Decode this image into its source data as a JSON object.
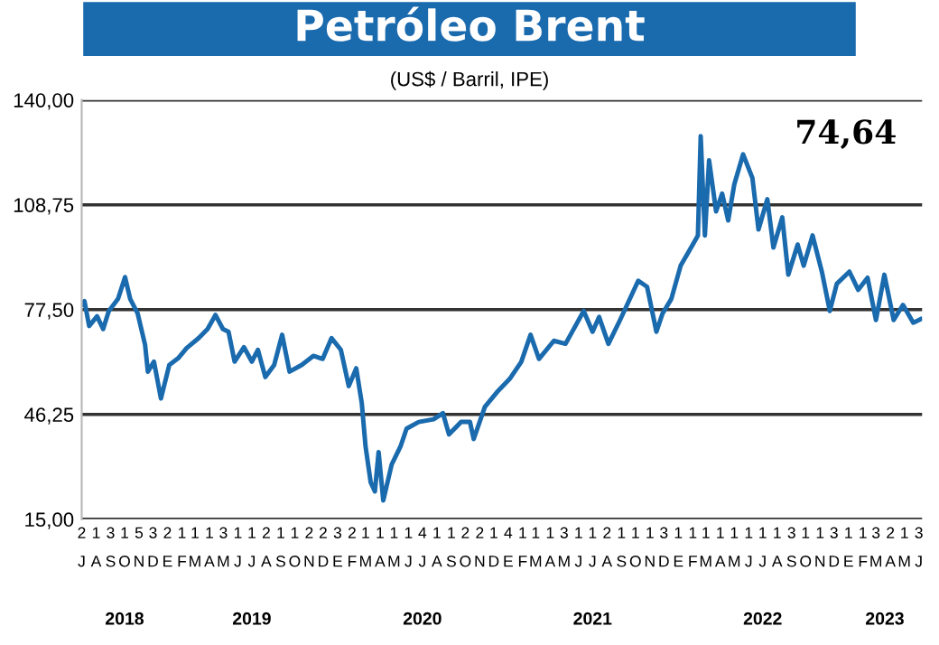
{
  "chart_data": {
    "type": "line",
    "title": "Petróleo Brent",
    "subtitle": "(US$ / Barril, IPE)",
    "annotations": [
      "74,64"
    ],
    "x": [
      "2018-07-01",
      "2018-07-07",
      "2018-07-17",
      "2018-08-03",
      "2018-08-16",
      "2018-08-28",
      "2018-09-17",
      "2018-10-02",
      "2018-10-13",
      "2018-10-29",
      "2018-11-14",
      "2018-11-20",
      "2018-12-03",
      "2018-12-18",
      "2019-01-05",
      "2019-01-24",
      "2019-02-11",
      "2019-03-09",
      "2019-03-28",
      "2019-04-14",
      "2019-04-30",
      "2019-05-12",
      "2019-05-25",
      "2019-06-14",
      "2019-07-01",
      "2019-07-14",
      "2019-07-30",
      "2019-08-18",
      "2019-09-04",
      "2019-09-20",
      "2019-10-16",
      "2019-11-10",
      "2019-11-30",
      "2019-12-19",
      "2020-01-08",
      "2020-01-25",
      "2020-02-10",
      "2020-02-22",
      "2020-03-01",
      "2020-03-12",
      "2020-03-21",
      "2020-03-29",
      "2020-04-08",
      "2020-04-26",
      "2020-05-15",
      "2020-05-28",
      "2020-06-23",
      "2020-07-25",
      "2020-08-14",
      "2020-08-27",
      "2020-09-22",
      "2020-10-11",
      "2020-10-19",
      "2020-11-12",
      "2020-12-08",
      "2021-01-04",
      "2021-01-29",
      "2021-02-18",
      "2021-03-08",
      "2021-04-09",
      "2021-05-04",
      "2021-06-12",
      "2021-07-01",
      "2021-07-15",
      "2021-08-04",
      "2021-08-29",
      "2021-10-07",
      "2021-10-26",
      "2021-11-15",
      "2021-11-28",
      "2021-12-17",
      "2022-01-06",
      "2022-02-01",
      "2022-02-12",
      "2022-02-18",
      "2022-02-27",
      "2022-03-08",
      "2022-03-23",
      "2022-04-05",
      "2022-04-18",
      "2022-05-01",
      "2022-05-20",
      "2022-06-09",
      "2022-06-22",
      "2022-07-11",
      "2022-07-24",
      "2022-08-12",
      "2022-08-25",
      "2022-09-14",
      "2022-09-27",
      "2022-10-16",
      "2022-11-05",
      "2022-11-22",
      "2022-12-07",
      "2023-01-03",
      "2023-01-22",
      "2023-02-11",
      "2023-03-01",
      "2023-03-19",
      "2023-04-08",
      "2023-04-28",
      "2023-05-20",
      "2023-06-05"
    ],
    "series": [
      {
        "color": "#1a6aae",
        "values": [
          79,
          80,
          72.6,
          75.5,
          71.7,
          77,
          80.7,
          87.2,
          80.7,
          76.4,
          67,
          59,
          62,
          51,
          61,
          63,
          66,
          69,
          71.7,
          75.9,
          71.7,
          70.9,
          62,
          66.3,
          62,
          65.5,
          57.4,
          61,
          70,
          59,
          61,
          63.7,
          62.8,
          69,
          65.5,
          54.7,
          60,
          49.5,
          36.7,
          26,
          23.3,
          35,
          20.6,
          31.3,
          36.7,
          42,
          44,
          44.8,
          46.6,
          40.3,
          44,
          44,
          38.9,
          48.5,
          52.9,
          56.8,
          61.9,
          70,
          62.8,
          68.2,
          67.3,
          77.1,
          70.9,
          75.3,
          67.3,
          74.4,
          86.1,
          84.3,
          70.9,
          76.3,
          80.7,
          90.6,
          96.9,
          99.6,
          129.2,
          99.6,
          122,
          106.8,
          112.1,
          104.1,
          114.8,
          123.8,
          116.7,
          101.4,
          110.4,
          96,
          105,
          87.9,
          96.9,
          90.6,
          99.6,
          88.8,
          77.1,
          85.2,
          88.8,
          83.4,
          87,
          74.4,
          87.9,
          74.4,
          78.9,
          73.6,
          74.64
        ]
      }
    ],
    "xlim": [
      "2018-07-01",
      "2023-06-08"
    ],
    "xticks": [
      {
        "value": "2018-07-01",
        "label": "2\nJ"
      },
      {
        "value": "2018-08-01",
        "label": "1\nA"
      },
      {
        "value": "2018-09-01",
        "label": "3\nS"
      },
      {
        "value": "2018-10-01",
        "label": "1\nO"
      },
      {
        "value": "2018-11-01",
        "label": "5\nN"
      },
      {
        "value": "2018-12-01",
        "label": "3\nD"
      },
      {
        "value": "2019-01-01",
        "label": "2\nE"
      },
      {
        "value": "2019-02-01",
        "label": "1\nF"
      },
      {
        "value": "2019-03-01",
        "label": "1\nM"
      },
      {
        "value": "2019-04-01",
        "label": "1\nA"
      },
      {
        "value": "2019-05-01",
        "label": "3\nM"
      },
      {
        "value": "2019-06-01",
        "label": "1\nJ"
      },
      {
        "value": "2019-07-01",
        "label": "1\nJ"
      },
      {
        "value": "2019-08-01",
        "label": "2\nA"
      },
      {
        "value": "2019-09-01",
        "label": "1\nS"
      },
      {
        "value": "2019-10-01",
        "label": "1\nO"
      },
      {
        "value": "2019-11-01",
        "label": "2\nN"
      },
      {
        "value": "2019-12-01",
        "label": "2\nD"
      },
      {
        "value": "2020-01-01",
        "label": "3\nE"
      },
      {
        "value": "2020-02-01",
        "label": "2\nF"
      },
      {
        "value": "2020-03-01",
        "label": "1\nM"
      },
      {
        "value": "2020-04-01",
        "label": "1\nA"
      },
      {
        "value": "2020-05-01",
        "label": "1\nM"
      },
      {
        "value": "2020-06-01",
        "label": "1\nJ"
      },
      {
        "value": "2020-07-01",
        "label": "4\nJ"
      },
      {
        "value": "2020-08-01",
        "label": "1\nA"
      },
      {
        "value": "2020-09-01",
        "label": "1\nS"
      },
      {
        "value": "2020-10-01",
        "label": "2\nO"
      },
      {
        "value": "2020-11-01",
        "label": "2\nN"
      },
      {
        "value": "2020-12-01",
        "label": "1\nD"
      },
      {
        "value": "2021-01-01",
        "label": "4\nE"
      },
      {
        "value": "2021-02-01",
        "label": "1\nF"
      },
      {
        "value": "2021-03-01",
        "label": "1\nM"
      },
      {
        "value": "2021-04-01",
        "label": "1\nA"
      },
      {
        "value": "2021-05-01",
        "label": "3\nM"
      },
      {
        "value": "2021-06-01",
        "label": "1\nJ"
      },
      {
        "value": "2021-07-01",
        "label": "1\nJ"
      },
      {
        "value": "2021-08-01",
        "label": "2\nA"
      },
      {
        "value": "2021-09-01",
        "label": "1\nS"
      },
      {
        "value": "2021-10-01",
        "label": "1\nO"
      },
      {
        "value": "2021-11-01",
        "label": "1\nN"
      },
      {
        "value": "2021-12-01",
        "label": "3\nD"
      },
      {
        "value": "2022-01-01",
        "label": "1\nE"
      },
      {
        "value": "2022-02-01",
        "label": "1\nF"
      },
      {
        "value": "2022-03-01",
        "label": "1\nM"
      },
      {
        "value": "2022-04-01",
        "label": "1\nA"
      },
      {
        "value": "2022-05-01",
        "label": "1\nM"
      },
      {
        "value": "2022-06-01",
        "label": "1\nJ"
      },
      {
        "value": "2022-07-01",
        "label": "1\nJ"
      },
      {
        "value": "2022-08-01",
        "label": "1\nA"
      },
      {
        "value": "2022-09-01",
        "label": "3\nS"
      },
      {
        "value": "2022-10-01",
        "label": "1\nO"
      },
      {
        "value": "2022-11-01",
        "label": "1\nN"
      },
      {
        "value": "2022-12-01",
        "label": "3\nD"
      },
      {
        "value": "2023-01-01",
        "label": "1\nE"
      },
      {
        "value": "2023-02-01",
        "label": "1\nF"
      },
      {
        "value": "2023-03-01",
        "label": "3\nM"
      },
      {
        "value": "2023-04-01",
        "label": "2\nA"
      },
      {
        "value": "2023-05-01",
        "label": "1\nM"
      },
      {
        "value": "2023-06-01",
        "label": "3\nJ"
      }
    ],
    "x2lim": [
      "2018-07-01",
      "2023-06-08"
    ],
    "x2ticks": [
      {
        "value": "2018-10-01",
        "label": "2018"
      },
      {
        "value": "2019-07-01",
        "label": "2019"
      },
      {
        "value": "2020-07-01",
        "label": "2020"
      },
      {
        "value": "2021-07-01",
        "label": "2021"
      },
      {
        "value": "2022-07-01",
        "label": "2022"
      },
      {
        "value": "2023-03-20",
        "label": "2023"
      }
    ],
    "ylim": [
      15,
      140
    ],
    "yticks": [
      {
        "value": 15,
        "label": "15,00"
      },
      {
        "value": 46.25,
        "label": "46,25"
      },
      {
        "value": 77.5,
        "label": "77,50"
      },
      {
        "value": 108.75,
        "label": "108,75"
      },
      {
        "value": 140,
        "label": "140,00"
      }
    ],
    "grid": "y",
    "marker": "none",
    "line_style": "solid",
    "legend": false
  }
}
